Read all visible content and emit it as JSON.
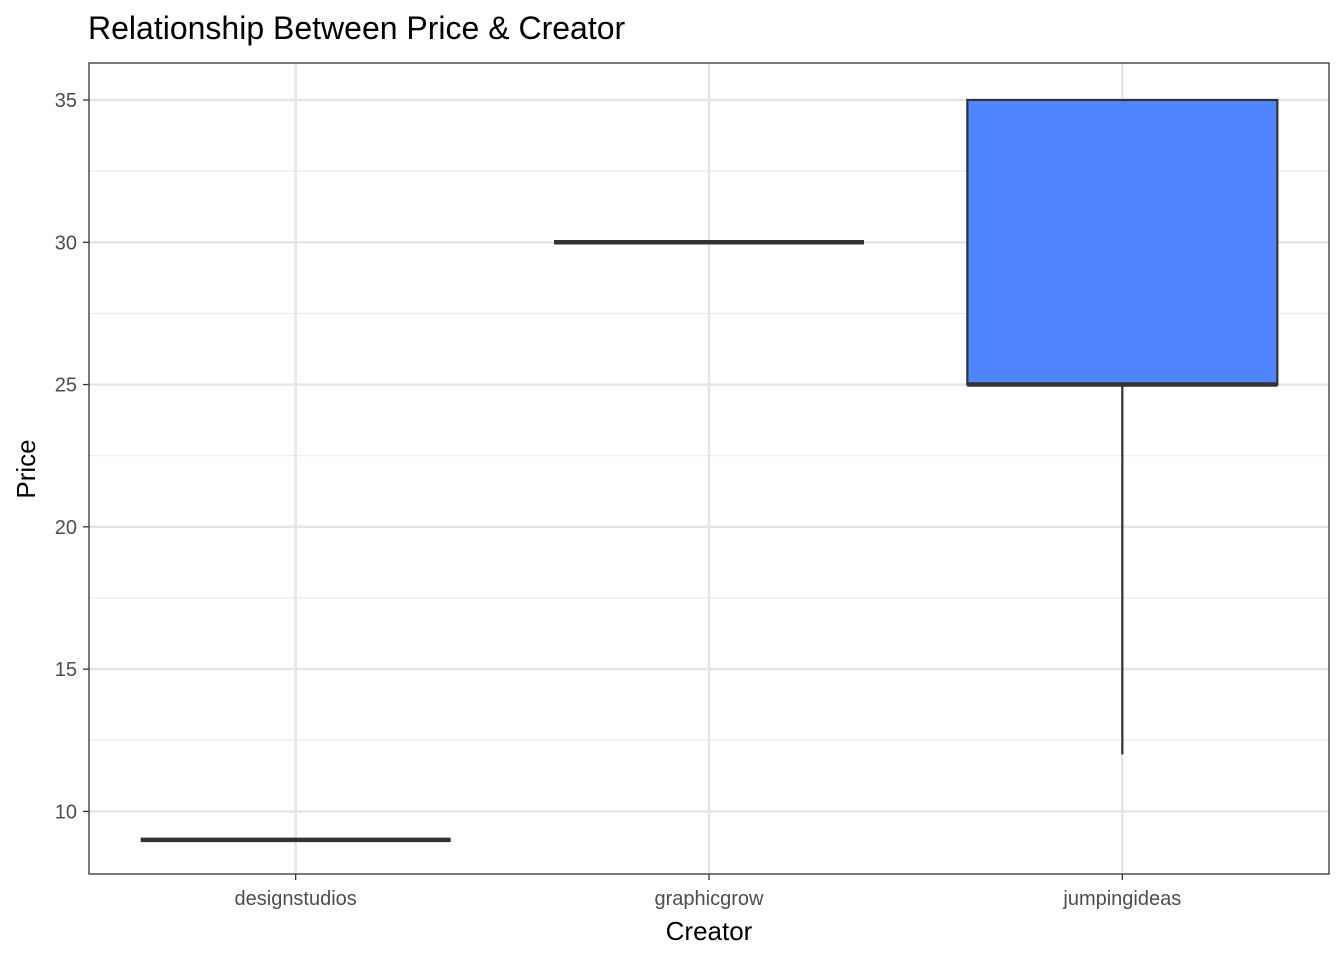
{
  "chart_data": {
    "type": "boxplot",
    "title": "Relationship Between Price & Creator",
    "xlabel": "Creator",
    "ylabel": "Price",
    "categories": [
      "designstudios",
      "graphicgrow",
      "jumpingideas"
    ],
    "ylim": [
      7.8,
      36.3
    ],
    "yticks": [
      10,
      15,
      20,
      25,
      30,
      35
    ],
    "grid": true,
    "box_fill": "#4f86ff",
    "boxes": [
      {
        "category": "designstudios",
        "min": 9,
        "q1": 9,
        "median": 9,
        "q3": 9,
        "max": 9
      },
      {
        "category": "graphicgrow",
        "min": 30,
        "q1": 30,
        "median": 30,
        "q3": 30,
        "max": 30
      },
      {
        "category": "jumpingideas",
        "min": 12,
        "q1": 25,
        "median": 25,
        "q3": 35,
        "max": 35
      }
    ]
  }
}
